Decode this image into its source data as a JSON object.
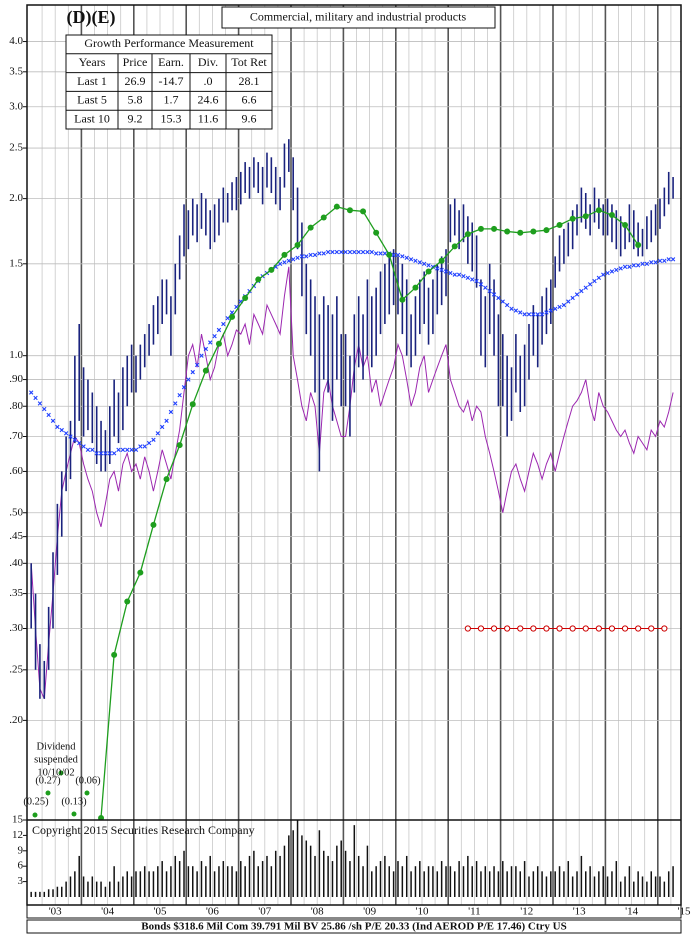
{
  "logo": "(D)(E)",
  "description": "Commercial, military and industrial products",
  "table": {
    "title": "Growth Performance Measurement",
    "header": [
      "Years",
      "Price",
      "Earn.",
      "Div.",
      "Tot Ret"
    ],
    "rows": [
      [
        "Last 1",
        "26.9",
        "-14.7",
        ".0",
        "28.1"
      ],
      [
        "Last 5",
        "5.8",
        "1.7",
        "24.6",
        "6.6"
      ],
      [
        "Last 10",
        "9.2",
        "15.3",
        "11.6",
        "9.6"
      ]
    ]
  },
  "copyright": "Copyright 2015 Securities Research Company",
  "footer": "Bonds  $318.6 Mil Com 39.791 Mil BV 25.86 /sh  P/E 20.33 (Ind AEROD P/E 17.46) Ctry US",
  "chart_data": [
    {
      "type": "stock",
      "log_scale": true,
      "grid": true,
      "categories": [
        "'03",
        "'04",
        "'05",
        "'06",
        "'07",
        "'08",
        "'09",
        "'10",
        "'11",
        "'12",
        "'13",
        "'14",
        "'15"
      ],
      "ylim": [
        0.13,
        4.7
      ],
      "yticks": [
        {
          "value": 4,
          "label": "4.0"
        },
        {
          "value": 3.5,
          "label": "3.5"
        },
        {
          "value": 3,
          "label": "3.0"
        },
        {
          "value": 2.5,
          "label": "2.5"
        },
        {
          "value": 2,
          "label": "2.0"
        },
        {
          "value": 1.5,
          "label": "1.5"
        },
        {
          "value": 1,
          "label": "1.0"
        },
        {
          "value": 0.9,
          "label": ".90"
        },
        {
          "value": 0.8,
          "label": ".80"
        },
        {
          "value": 0.7,
          "label": ".70"
        },
        {
          "value": 0.6,
          "label": ".60"
        },
        {
          "value": 0.5,
          "label": ".50"
        },
        {
          "value": 0.45,
          "label": ".45"
        },
        {
          "value": 0.4,
          "label": ".40"
        },
        {
          "value": 0.35,
          "label": ".35"
        },
        {
          "value": 0.3,
          "label": ".30"
        },
        {
          "value": 0.25,
          "label": ".25"
        },
        {
          "value": 0.2,
          "label": ".20"
        }
      ],
      "price": {
        "color": "#1a237e",
        "high": [
          0.4,
          0.35,
          0.28,
          0.26,
          0.33,
          0.42,
          0.52,
          0.6,
          0.7,
          0.75,
          1.0,
          1.15,
          0.95,
          0.9,
          0.85,
          0.8,
          0.75,
          0.72,
          0.8,
          0.9,
          0.85,
          0.95,
          1.0,
          1.05,
          1.0,
          1.05,
          1.1,
          1.15,
          1.25,
          1.3,
          1.4,
          1.4,
          1.3,
          1.5,
          1.7,
          1.95,
          1.9,
          2.0,
          1.95,
          2.05,
          2.0,
          1.9,
          1.95,
          2.0,
          2.1,
          2.05,
          2.15,
          2.2,
          2.25,
          2.35,
          2.3,
          2.4,
          2.35,
          2.3,
          2.45,
          2.4,
          2.3,
          2.2,
          2.55,
          2.6,
          2.4,
          2.1,
          1.8,
          1.5,
          1.4,
          1.3,
          1.2,
          1.3,
          1.25,
          1.2,
          1.3,
          1.1,
          1.1,
          1.0,
          1.2,
          1.3,
          1.2,
          1.4,
          1.3,
          1.35,
          1.45,
          1.5,
          1.55,
          1.6,
          1.55,
          1.5,
          1.4,
          1.2,
          1.3,
          1.4,
          1.45,
          1.35,
          1.4,
          1.5,
          1.55,
          1.6,
          1.95,
          2.0,
          1.9,
          1.95,
          1.85,
          1.8,
          1.7,
          1.4,
          1.3,
          1.5,
          1.4,
          1.2,
          1.1,
          1.0,
          0.95,
          1.1,
          1.0,
          1.05,
          1.15,
          1.25,
          1.2,
          1.3,
          1.35,
          1.4,
          1.55,
          1.7,
          1.75,
          1.8,
          1.9,
          1.95,
          2.1,
          2.05,
          1.95,
          2.1,
          2.0,
          1.95,
          2.0,
          1.95,
          1.9,
          1.85,
          1.8,
          1.95,
          1.9,
          1.8,
          1.75,
          1.85,
          1.9,
          1.95,
          2.0,
          2.1,
          2.25,
          2.2
        ],
        "low": [
          0.3,
          0.25,
          0.22,
          0.22,
          0.25,
          0.3,
          0.38,
          0.45,
          0.55,
          0.58,
          0.68,
          0.75,
          0.7,
          0.72,
          0.68,
          0.62,
          0.6,
          0.6,
          0.62,
          0.7,
          0.68,
          0.72,
          0.8,
          0.85,
          0.85,
          0.9,
          0.95,
          1.0,
          1.05,
          1.1,
          1.15,
          1.2,
          1.0,
          1.2,
          1.4,
          1.55,
          1.6,
          1.7,
          1.65,
          1.75,
          1.7,
          1.6,
          1.65,
          1.7,
          1.8,
          1.8,
          1.9,
          1.9,
          1.95,
          2.05,
          2.0,
          2.1,
          2.05,
          1.95,
          2.1,
          2.05,
          1.95,
          1.9,
          2.1,
          2.25,
          1.9,
          1.6,
          1.3,
          1.1,
          1.0,
          0.85,
          0.6,
          0.9,
          0.85,
          0.75,
          0.9,
          0.8,
          0.8,
          0.7,
          0.85,
          0.95,
          0.9,
          1.0,
          0.95,
          1.0,
          1.1,
          1.15,
          1.2,
          1.25,
          1.2,
          1.1,
          1.0,
          0.95,
          1.0,
          1.1,
          1.15,
          1.05,
          1.1,
          1.2,
          1.25,
          1.3,
          1.65,
          1.7,
          1.6,
          1.65,
          1.5,
          1.45,
          1.35,
          1.0,
          0.95,
          1.1,
          1.0,
          0.8,
          0.8,
          0.7,
          0.75,
          0.85,
          0.78,
          0.8,
          0.9,
          1.0,
          0.95,
          1.05,
          1.1,
          1.15,
          1.35,
          1.45,
          1.5,
          1.55,
          1.6,
          1.7,
          1.8,
          1.75,
          1.7,
          1.8,
          1.75,
          1.7,
          1.7,
          1.65,
          1.6,
          1.55,
          1.6,
          1.65,
          1.6,
          1.55,
          1.55,
          1.6,
          1.65,
          1.7,
          1.75,
          1.85,
          1.95,
          2.0
        ]
      },
      "moving_average": {
        "color": "#1f3fff",
        "values": [
          0.85,
          0.83,
          0.81,
          0.79,
          0.77,
          0.75,
          0.73,
          0.72,
          0.71,
          0.7,
          0.69,
          0.68,
          0.67,
          0.66,
          0.66,
          0.65,
          0.65,
          0.65,
          0.65,
          0.65,
          0.66,
          0.66,
          0.66,
          0.66,
          0.66,
          0.67,
          0.67,
          0.68,
          0.69,
          0.71,
          0.73,
          0.75,
          0.78,
          0.81,
          0.84,
          0.87,
          0.9,
          0.93,
          0.96,
          1.0,
          1.03,
          1.06,
          1.09,
          1.12,
          1.15,
          1.18,
          1.21,
          1.24,
          1.27,
          1.3,
          1.33,
          1.36,
          1.39,
          1.42,
          1.44,
          1.46,
          1.48,
          1.5,
          1.51,
          1.52,
          1.53,
          1.54,
          1.55,
          1.55,
          1.56,
          1.56,
          1.57,
          1.57,
          1.58,
          1.58,
          1.58,
          1.58,
          1.58,
          1.58,
          1.58,
          1.58,
          1.58,
          1.58,
          1.58,
          1.57,
          1.57,
          1.57,
          1.57,
          1.56,
          1.56,
          1.55,
          1.54,
          1.53,
          1.52,
          1.51,
          1.5,
          1.49,
          1.48,
          1.47,
          1.46,
          1.45,
          1.44,
          1.43,
          1.43,
          1.42,
          1.41,
          1.4,
          1.39,
          1.37,
          1.35,
          1.33,
          1.31,
          1.29,
          1.27,
          1.25,
          1.23,
          1.22,
          1.21,
          1.2,
          1.2,
          1.2,
          1.2,
          1.2,
          1.21,
          1.22,
          1.23,
          1.24,
          1.25,
          1.27,
          1.29,
          1.31,
          1.33,
          1.35,
          1.37,
          1.39,
          1.41,
          1.43,
          1.44,
          1.45,
          1.46,
          1.47,
          1.48,
          1.48,
          1.49,
          1.49,
          1.5,
          1.5,
          1.51,
          1.51,
          1.52,
          1.52,
          1.53,
          1.53
        ]
      },
      "relative_strength": {
        "color": "#9c27b0",
        "values": [
          0.4,
          0.3,
          0.23,
          0.22,
          0.28,
          0.35,
          0.45,
          0.55,
          0.6,
          0.65,
          0.7,
          0.68,
          0.62,
          0.58,
          0.55,
          0.5,
          0.47,
          0.52,
          0.58,
          0.6,
          0.55,
          0.62,
          0.65,
          0.6,
          0.62,
          0.58,
          0.64,
          0.6,
          0.55,
          0.6,
          0.66,
          0.62,
          0.58,
          0.65,
          0.72,
          0.85,
          1.0,
          1.05,
          0.95,
          1.1,
          1.0,
          0.9,
          0.95,
          1.05,
          1.1,
          1.0,
          1.05,
          1.12,
          1.1,
          1.15,
          1.05,
          1.2,
          1.15,
          1.1,
          1.25,
          1.2,
          1.15,
          1.1,
          1.3,
          1.48,
          1.0,
          0.9,
          0.8,
          0.75,
          0.85,
          0.8,
          0.65,
          0.85,
          0.9,
          0.8,
          0.75,
          0.7,
          0.7,
          0.8,
          0.95,
          1.05,
          0.95,
          1.0,
          0.85,
          0.9,
          0.8,
          0.85,
          0.9,
          0.95,
          1.05,
          1.0,
          0.9,
          0.8,
          0.85,
          0.95,
          1.0,
          0.85,
          0.9,
          0.95,
          1.0,
          1.05,
          0.9,
          0.85,
          0.8,
          0.78,
          0.82,
          0.75,
          0.8,
          0.78,
          0.7,
          0.65,
          0.6,
          0.55,
          0.5,
          0.55,
          0.6,
          0.62,
          0.58,
          0.55,
          0.6,
          0.65,
          0.62,
          0.58,
          0.62,
          0.65,
          0.6,
          0.65,
          0.7,
          0.75,
          0.8,
          0.82,
          0.85,
          0.9,
          0.8,
          0.75,
          0.85,
          0.8,
          0.78,
          0.75,
          0.72,
          0.7,
          0.72,
          0.68,
          0.65,
          0.7,
          0.68,
          0.66,
          0.72,
          0.7,
          0.75,
          0.73,
          0.78,
          0.85
        ]
      },
      "earnings": {
        "color": "#1e9e1e",
        "values": [
          null,
          null,
          null,
          null,
          null,
          0.13,
          0.267,
          0.338,
          0.384,
          0.474,
          0.58,
          0.674,
          0.807,
          0.936,
          1.054,
          1.187,
          1.29,
          1.4,
          1.46,
          1.56,
          1.63,
          1.76,
          1.84,
          1.93,
          1.9,
          1.89,
          1.72,
          1.56,
          1.28,
          1.35,
          1.45,
          1.52,
          1.62,
          1.71,
          1.75,
          1.75,
          1.73,
          1.72,
          1.73,
          1.74,
          1.78,
          1.83,
          1.85,
          1.9,
          1.86,
          1.78,
          1.63,
          null,
          null
        ]
      },
      "dividends": {
        "color": "#cc0000",
        "values": [
          null,
          null,
          null,
          null,
          null,
          null,
          null,
          null,
          null,
          null,
          null,
          null,
          null,
          null,
          null,
          null,
          null,
          null,
          null,
          null,
          null,
          null,
          null,
          null,
          null,
          null,
          null,
          null,
          null,
          null,
          null,
          null,
          null,
          0.3,
          0.3,
          0.3,
          0.3,
          0.3,
          0.3,
          0.3,
          0.3,
          0.3,
          0.3,
          0.3,
          0.3,
          0.3,
          0.3,
          0.3,
          0.3
        ]
      },
      "annotations": [
        "Dividend",
        "suspended",
        "10/10/02",
        "(0.25)",
        "(0.27)",
        "(0.13)",
        "(0.06)"
      ]
    },
    {
      "type": "bar",
      "color": "#111111",
      "ylim": [
        0,
        15
      ],
      "yticks": [
        15,
        12,
        9,
        6,
        3
      ],
      "values": [
        1,
        1,
        1,
        1,
        1.5,
        1.5,
        2,
        2,
        3,
        4,
        5,
        8,
        4,
        3,
        4,
        3,
        3,
        2,
        3,
        6,
        3,
        4,
        5,
        4,
        5,
        5,
        6,
        5,
        5,
        6,
        7,
        5,
        6,
        8,
        7,
        9,
        6,
        6,
        5,
        7,
        6,
        8,
        5,
        6,
        7,
        6,
        6,
        5,
        7,
        6,
        8,
        9,
        6,
        7,
        8,
        6,
        9,
        8,
        10,
        12,
        13,
        15,
        12,
        11,
        10,
        8,
        13,
        9,
        8,
        7,
        10,
        11,
        9,
        7,
        14,
        8,
        6,
        10,
        5,
        6,
        7,
        8,
        6,
        5,
        7,
        6,
        8,
        5,
        6,
        7,
        5,
        6,
        6,
        5,
        7,
        6,
        6,
        5,
        7,
        6,
        8,
        6,
        7,
        5,
        6,
        5,
        6,
        5,
        7,
        5,
        6,
        6,
        5,
        7,
        4,
        5,
        6,
        5,
        4,
        5,
        5,
        6,
        5,
        7,
        4,
        5,
        8,
        5,
        6,
        4,
        5,
        6,
        4,
        5,
        7,
        3,
        4,
        6,
        3,
        5,
        4,
        3,
        5,
        4,
        4,
        3,
        5,
        6
      ]
    }
  ]
}
